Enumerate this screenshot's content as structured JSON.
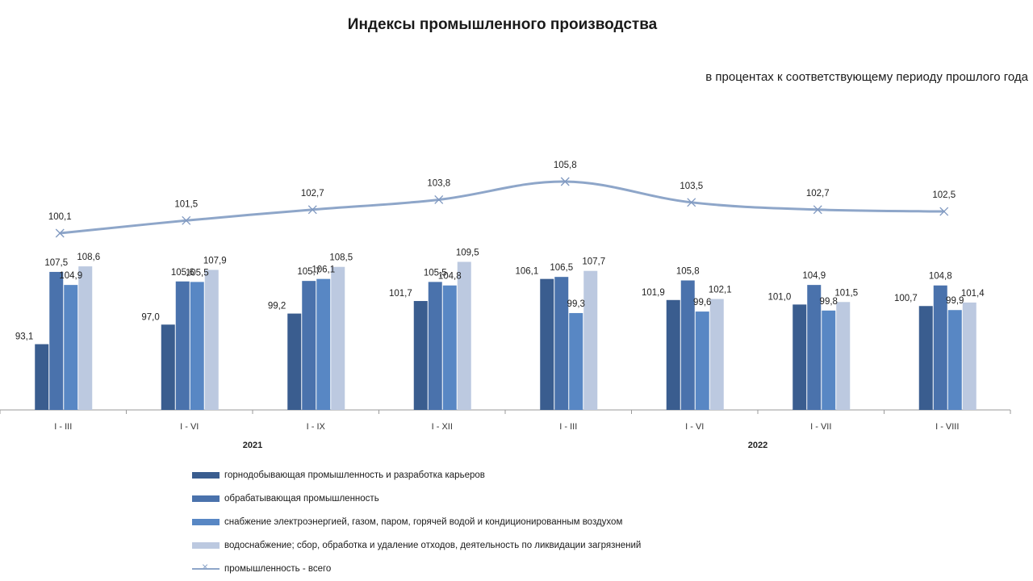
{
  "chart_data": {
    "type": "bar",
    "title": "Индексы промышленного производства",
    "subtitle": "в процентах  к  соответствующему  периоду  прошлого  года",
    "categories": [
      "I - III",
      "I - VI",
      "I - IX",
      "I - XII",
      "I - III",
      "I - VI",
      "I - VII",
      "I - VIII"
    ],
    "year_labels": [
      {
        "label": "2021",
        "span": [
          0,
          3
        ]
      },
      {
        "label": "2022",
        "span": [
          4,
          7
        ]
      }
    ],
    "series": [
      {
        "name": "горнодобывающая промышленность и разработка карьеров",
        "color": "#3a5d8f",
        "values": [
          93.1,
          97.0,
          99.2,
          101.7,
          106.1,
          101.9,
          101.0,
          100.7
        ],
        "labels": [
          "93,1",
          "97,0",
          "99,2",
          "101,7",
          "106,1",
          "101,9",
          "101,0",
          "100,7"
        ]
      },
      {
        "name": "обрабатывающая промышленность",
        "color": "#4a72ac",
        "values": [
          107.5,
          105.6,
          105.7,
          105.5,
          106.5,
          105.8,
          104.9,
          104.8
        ],
        "labels": [
          "107,5",
          "105,6",
          "105,7",
          "105,5",
          "106,5",
          "105,8",
          "104,9",
          "104,8"
        ]
      },
      {
        "name": "снабжение электроэнергией, газом, паром, горячей водой и  кондиционированным воздухом",
        "color": "#5887c4",
        "values": [
          104.9,
          105.5,
          106.1,
          104.8,
          99.3,
          99.6,
          99.8,
          99.9
        ],
        "labels": [
          "104,9",
          "105,5",
          "106,1",
          "104,8",
          "99,3",
          "99,6",
          "99,8",
          "99,9"
        ]
      },
      {
        "name": "водоснабжение; сбор, обработка и удаление отходов, деятельность по ликвидации загрязнений",
        "color": "#bcc9e0",
        "values": [
          108.6,
          107.9,
          108.5,
          109.5,
          107.7,
          102.1,
          101.5,
          101.4
        ],
        "labels": [
          "108,6",
          "107,9",
          "108,5",
          "109,5",
          "107,7",
          "102,1",
          "101,5",
          "101,4"
        ]
      }
    ],
    "line_series": {
      "name": "промышленность - всего",
      "color": "#8ea6c9",
      "marker": "x",
      "values": [
        100.1,
        101.5,
        102.7,
        103.8,
        105.8,
        103.5,
        102.7,
        102.5
      ],
      "labels": [
        "100,1",
        "101,5",
        "102,7",
        "103,8",
        "105,8",
        "103,5",
        "102,7",
        "102,5"
      ]
    },
    "legend_position": "bottom-left",
    "grid": false
  }
}
